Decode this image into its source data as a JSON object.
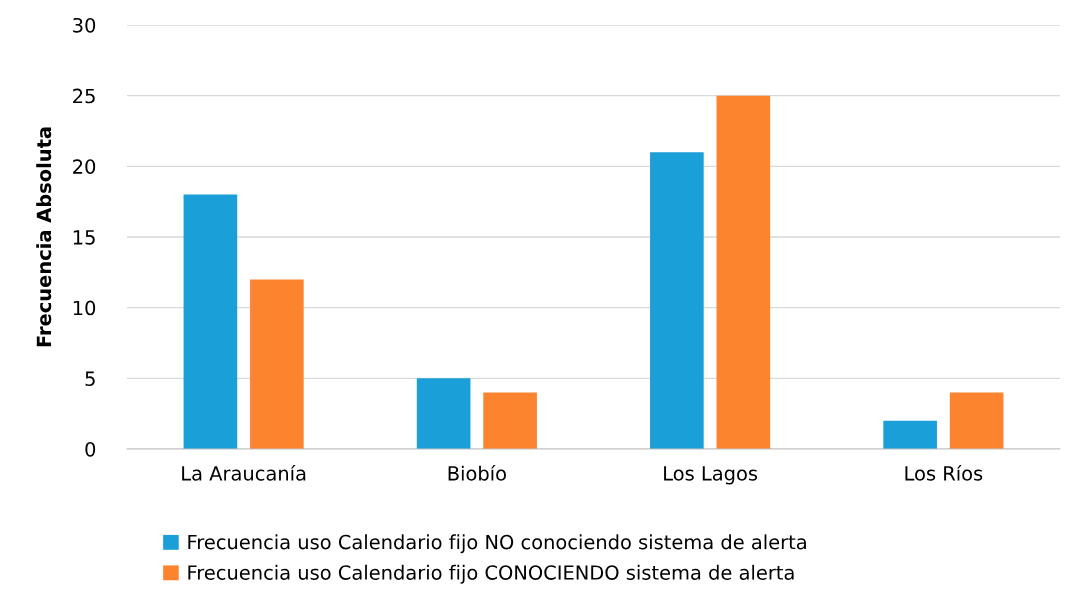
{
  "chart_data": {
    "type": "bar",
    "ylabel": "Frecuencia Absoluta",
    "categories": [
      "La Araucanía",
      "Biobío",
      "Los Lagos",
      "Los Ríos"
    ],
    "series": [
      {
        "name": "Frecuencia uso Calendario fijo NO conociendo sistema de alerta",
        "color": "#1b9fd8",
        "values": [
          18,
          5,
          21,
          2
        ]
      },
      {
        "name": "Frecuencia uso Calendario fijo CONOCIENDO sistema de alerta",
        "color": "#fd842f",
        "values": [
          12,
          4,
          25,
          4
        ]
      }
    ],
    "ylim": [
      0,
      30
    ],
    "yticks": [
      0,
      5,
      10,
      15,
      20,
      25,
      30
    ],
    "grid": "y",
    "legend": "bottom"
  }
}
